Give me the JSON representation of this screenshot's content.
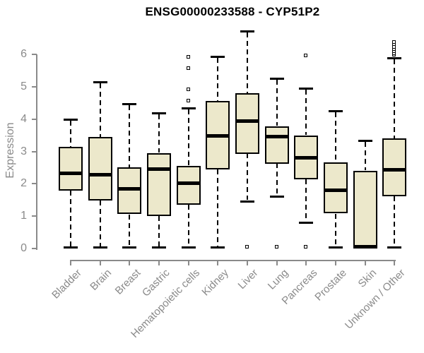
{
  "colors": {
    "background": "#ffffff",
    "box_fill": "#ece8cb",
    "box_border": "#000000",
    "median": "#000000",
    "whisker": "#000000",
    "axis": "#8a8a8a",
    "tick_label": "#8a8a8a",
    "title": "#000000"
  },
  "chart_data": {
    "type": "boxplot",
    "title": "ENSG00000233588 - CYP51P2",
    "xlabel": "",
    "ylabel": "Expression",
    "ylim": [
      0,
      6.8
    ],
    "yticks": [
      0,
      1,
      2,
      3,
      4,
      5,
      6
    ],
    "grid": false,
    "legend": "none",
    "categories": [
      "Bladder",
      "Brain",
      "Breast",
      "Gastric",
      "Hematopoietic cells",
      "Kidney",
      "Liver",
      "Lung",
      "Pancreas",
      "Prostate",
      "Skin",
      "Unknown / Other"
    ],
    "series": [
      {
        "category": "Bladder",
        "whisker_low": 0.05,
        "q1": 1.8,
        "median": 2.33,
        "q3": 3.15,
        "whisker_high": 4.0,
        "outliers": []
      },
      {
        "category": "Brain",
        "whisker_low": 0.05,
        "q1": 1.48,
        "median": 2.3,
        "q3": 3.44,
        "whisker_high": 5.15,
        "outliers": []
      },
      {
        "category": "Breast",
        "whisker_low": 0.05,
        "q1": 1.05,
        "median": 1.85,
        "q3": 2.5,
        "whisker_high": 4.47,
        "outliers": []
      },
      {
        "category": "Gastric",
        "whisker_low": 0.05,
        "q1": 1.0,
        "median": 2.47,
        "q3": 2.95,
        "whisker_high": 4.18,
        "outliers": []
      },
      {
        "category": "Hematopoietic cells",
        "whisker_low": 0.05,
        "q1": 1.35,
        "median": 2.03,
        "q3": 2.55,
        "whisker_high": 4.34,
        "outliers": [
          4.57,
          4.91,
          5.57,
          5.91
        ]
      },
      {
        "category": "Kidney",
        "whisker_low": 0.05,
        "q1": 2.45,
        "median": 3.5,
        "q3": 4.56,
        "whisker_high": 5.93,
        "outliers": []
      },
      {
        "category": "Liver",
        "whisker_low": 1.47,
        "q1": 2.94,
        "median": 3.96,
        "q3": 4.81,
        "whisker_high": 6.72,
        "outliers": [
          0.04
        ]
      },
      {
        "category": "Lung",
        "whisker_low": 1.61,
        "q1": 2.63,
        "median": 3.48,
        "q3": 3.78,
        "whisker_high": 5.25,
        "outliers": [
          0.04
        ]
      },
      {
        "category": "Pancreas",
        "whisker_low": 0.8,
        "q1": 2.14,
        "median": 2.81,
        "q3": 3.5,
        "whisker_high": 4.95,
        "outliers": [
          5.95,
          0.04
        ]
      },
      {
        "category": "Prostate",
        "whisker_low": 0.05,
        "q1": 1.08,
        "median": 1.81,
        "q3": 2.66,
        "whisker_high": 4.26,
        "outliers": []
      },
      {
        "category": "Skin",
        "whisker_low": 0.02,
        "q1": 0.02,
        "median": 0.07,
        "q3": 2.41,
        "whisker_high": 3.33,
        "outliers": []
      },
      {
        "category": "Unknown / Other",
        "whisker_low": 0.05,
        "q1": 1.61,
        "median": 2.45,
        "q3": 3.4,
        "whisker_high": 5.9,
        "outliers": [
          5.97,
          6.03,
          6.09,
          6.16,
          6.22,
          6.3,
          6.38
        ]
      }
    ]
  }
}
